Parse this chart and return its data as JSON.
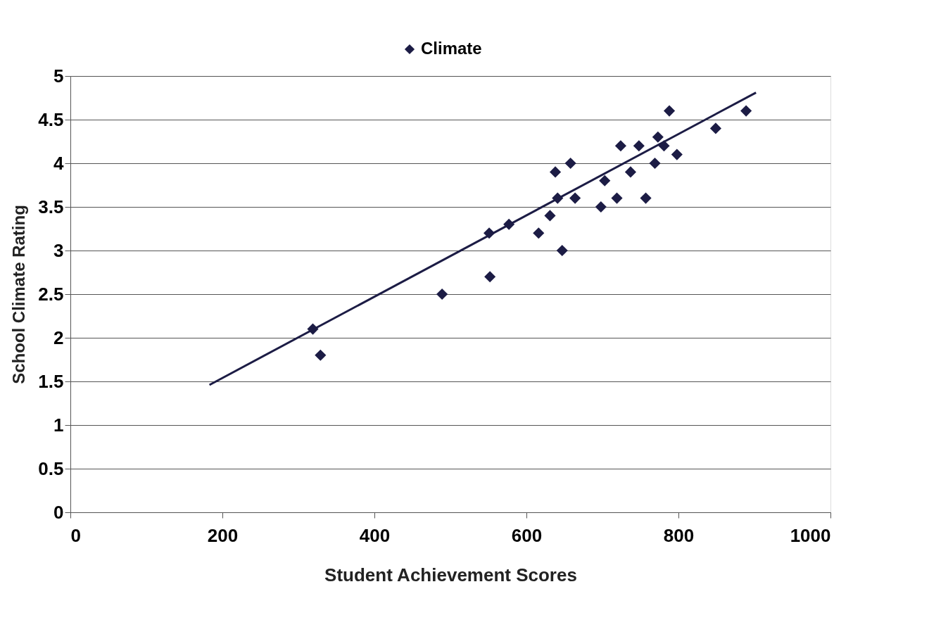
{
  "chart_data": {
    "type": "scatter",
    "xlabel": "Student Achievement Scores",
    "ylabel": "School Climate Rating",
    "xlim": [
      0,
      1000
    ],
    "xticks": [
      0,
      200,
      400,
      600,
      800,
      1000
    ],
    "ylim": [
      0,
      5
    ],
    "yticks": [
      0,
      0.5,
      1,
      1.5,
      2,
      2.5,
      3,
      3.5,
      4,
      4.5,
      5
    ],
    "grid": "y",
    "legend": "top",
    "series": [
      {
        "name": "Climate",
        "color": "#1c1c45",
        "marker": "diamond",
        "x": [
          319,
          329,
          489,
          551,
          552,
          577,
          616,
          631,
          647,
          638,
          658,
          641,
          664,
          698,
          703,
          719,
          737,
          724,
          748,
          757,
          769,
          773,
          781,
          798,
          788,
          849,
          889
        ],
        "values": [
          2.1,
          1.8,
          2.5,
          3.2,
          2.7,
          3.3,
          3.2,
          3.4,
          3.0,
          3.9,
          4.0,
          3.6,
          3.6,
          3.5,
          3.8,
          3.6,
          3.9,
          4.2,
          4.2,
          3.6,
          4.0,
          4.3,
          4.2,
          4.1,
          4.6,
          4.4,
          4.6
        ]
      },
      {
        "type": "line",
        "color": "#1c1c45",
        "x": [
          183,
          902
        ],
        "values": [
          1.46,
          4.81
        ]
      }
    ]
  }
}
